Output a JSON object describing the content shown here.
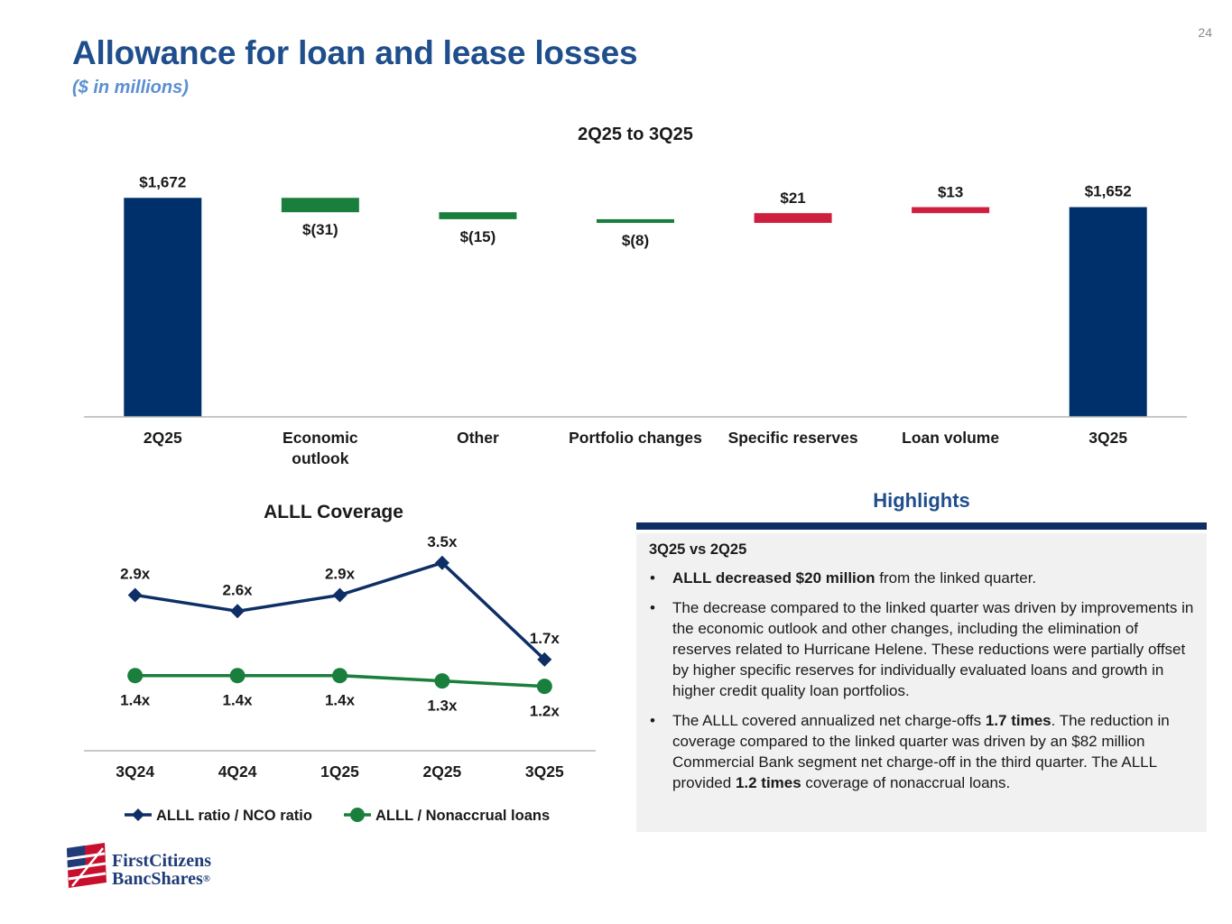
{
  "page": {
    "number": "24",
    "title": "Allowance for loan and lease losses",
    "subtitle": "($ in millions)"
  },
  "colors": {
    "navy": "#00306b",
    "green": "#1a7f3c",
    "red": "#cf1f3e",
    "title_blue": "#1f4e8c"
  },
  "chart_data": [
    {
      "type": "waterfall",
      "title": "2Q25 to 3Q25",
      "categories": [
        "2Q25",
        "Economic\noutlook",
        "Other",
        "Portfolio changes",
        "Specific reserves",
        "Loan volume",
        "3Q25"
      ],
      "values": [
        1672,
        -31,
        -15,
        -8,
        21,
        13,
        1652
      ],
      "kinds": [
        "total",
        "delta",
        "delta",
        "delta",
        "delta",
        "delta",
        "total"
      ],
      "labels": [
        "$1,672",
        "$(31)",
        "$(15)",
        "$(8)",
        "$21",
        "$13",
        "$1,652"
      ],
      "ylim": [
        1200,
        1690
      ]
    },
    {
      "type": "line",
      "title": "ALLL Coverage",
      "categories": [
        "3Q24",
        "4Q24",
        "1Q25",
        "2Q25",
        "3Q25"
      ],
      "ylim": [
        0,
        4.3
      ],
      "series": [
        {
          "name": "ALLL ratio / NCO ratio",
          "marker": "diamond",
          "color": "#0e2f66",
          "values": [
            2.9,
            2.6,
            2.9,
            3.5,
            1.7
          ],
          "labels": [
            "2.9x",
            "2.6x",
            "2.9x",
            "3.5x",
            "1.7x"
          ]
        },
        {
          "name": "ALLL / Nonaccrual loans",
          "marker": "circle",
          "color": "#1a7f3c",
          "values": [
            1.4,
            1.4,
            1.4,
            1.3,
            1.2
          ],
          "labels": [
            "1.4x",
            "1.4x",
            "1.4x",
            "1.3x",
            "1.2x"
          ]
        }
      ]
    }
  ],
  "highlights": {
    "title": "Highlights",
    "heading": "3Q25 vs 2Q25",
    "bullets": [
      {
        "parts": [
          {
            "text": "ALLL decreased $20 million",
            "bold": true
          },
          {
            "text": " from the linked quarter.",
            "bold": false
          }
        ]
      },
      {
        "parts": [
          {
            "text": "The decrease compared to the linked quarter was driven by improvements in the economic outlook and other changes, including the elimination of reserves related to Hurricane Helene. These reductions were partially offset by higher specific reserves for individually evaluated loans and growth in higher credit quality loan portfolios.",
            "bold": false
          }
        ]
      },
      {
        "parts": [
          {
            "text": "The ALLL covered annualized net charge-offs ",
            "bold": false
          },
          {
            "text": "1.7 times",
            "bold": true
          },
          {
            "text": ". The reduction in coverage compared to the linked quarter was driven by an $82 million Commercial Bank segment net charge-off in the third quarter. The ALLL provided ",
            "bold": false
          },
          {
            "text": "1.2 times",
            "bold": true
          },
          {
            "text": " coverage of nonaccrual loans.",
            "bold": false
          }
        ]
      }
    ]
  },
  "logo": {
    "line1": "FirstCitizens",
    "line2": "BancShares",
    "mark": "®"
  }
}
